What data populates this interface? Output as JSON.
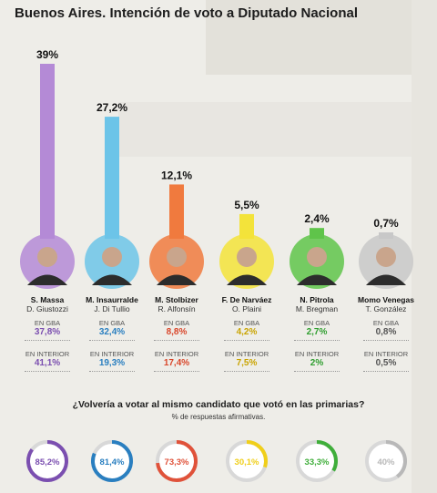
{
  "header": {
    "location": "Buenos Aires.",
    "title": "Intención de voto a Diputado Nacional"
  },
  "chart_data": [
    {
      "type": "bar",
      "categories": [
        "S. Massa",
        "M. Insaurralde",
        "M. Stolbizer",
        "F. De Narváez",
        "N. Pitrola",
        "Momo Venegas"
      ],
      "values": [
        39,
        27.2,
        12.1,
        5.5,
        2.4,
        0.7
      ],
      "value_labels": [
        "39%",
        "27,2%",
        "12,1%",
        "5,5%",
        "2,4%",
        "0,7%"
      ],
      "colors": [
        "#b48ad6",
        "#6cc4e8",
        "#f07a3e",
        "#f3e33a",
        "#5fc44a",
        "#c8c8c8"
      ],
      "ylim": [
        0,
        39
      ]
    },
    {
      "type": "table",
      "candidates": [
        {
          "name": "S. Massa",
          "second": "D. Giustozzi",
          "gba": "37,8%",
          "interior": "41,1%",
          "color": "#7b4fb0"
        },
        {
          "name": "M. Insaurralde",
          "second": "J. Di Tullio",
          "gba": "32,4%",
          "interior": "19,3%",
          "color": "#2a7fc0"
        },
        {
          "name": "M. Stolbizer",
          "second": "R. Alfonsín",
          "gba": "8,8%",
          "interior": "17,4%",
          "color": "#d9462a"
        },
        {
          "name": "F. De Narváez",
          "second": "O. Plaini",
          "gba": "4,2%",
          "interior": "7,5%",
          "color": "#c9a400"
        },
        {
          "name": "N. Pitrola",
          "second": "M. Bregman",
          "gba": "2,7%",
          "interior": "2%",
          "color": "#2f9e2f"
        },
        {
          "name": "Momo Venegas",
          "second": "T. González",
          "gba": "0,8%",
          "interior": "0,5%",
          "color": "#555555"
        }
      ],
      "gba_label": "EN GBA",
      "interior_label": "EN INTERIOR"
    },
    {
      "type": "pie",
      "title": "¿Volvería a votar al mismo candidato que votó en las primarias?",
      "subtitle": "% de respuestas afirmativas.",
      "values": [
        85.2,
        81.4,
        73.3,
        30.1,
        33.3,
        40
      ],
      "value_labels": [
        "85,2%",
        "81,4%",
        "73,3%",
        "30,1%",
        "33,3%",
        "40%"
      ],
      "colors": [
        "#7b4fb0",
        "#2a7fc0",
        "#e0523a",
        "#f0cf1a",
        "#3fae3a",
        "#b8b8b8"
      ]
    }
  ]
}
